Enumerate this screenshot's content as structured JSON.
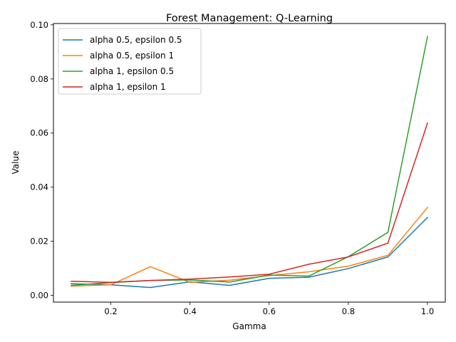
{
  "chart_data": {
    "type": "line",
    "title": "Forest Management: Q-Learning",
    "xlabel": "Gamma",
    "ylabel": "Value",
    "xlim": [
      0.055,
      1.045
    ],
    "ylim": [
      -0.0025,
      0.1005
    ],
    "x_ticks": [
      0.2,
      0.4,
      0.6,
      0.8,
      1.0
    ],
    "x_tick_labels": [
      "0.2",
      "0.4",
      "0.6",
      "0.8",
      "1.0"
    ],
    "y_ticks": [
      0.0,
      0.02,
      0.04,
      0.06,
      0.08,
      0.1
    ],
    "y_tick_labels": [
      "0.00",
      "0.02",
      "0.04",
      "0.06",
      "0.08",
      "0.10"
    ],
    "grid": false,
    "legend_position": "upper-left",
    "x": [
      0.1,
      0.2,
      0.3,
      0.4,
      0.5,
      0.6,
      0.7,
      0.8,
      0.9,
      1.0
    ],
    "series": [
      {
        "name": "alpha 0.5, epsilon 0.5",
        "color": "#1f77b4",
        "values": [
          0.0043,
          0.0039,
          0.0029,
          0.005,
          0.0037,
          0.0063,
          0.0067,
          0.0099,
          0.0142,
          0.0288
        ]
      },
      {
        "name": "alpha 0.5, epsilon 1",
        "color": "#ff7f0e",
        "values": [
          0.0034,
          0.0039,
          0.0106,
          0.0048,
          0.0056,
          0.0073,
          0.0087,
          0.0108,
          0.0148,
          0.0325
        ]
      },
      {
        "name": "alpha 1, epsilon 0.5",
        "color": "#2ca02c",
        "values": [
          0.0037,
          0.0047,
          0.0055,
          0.0057,
          0.0049,
          0.0075,
          0.0071,
          0.0143,
          0.0233,
          0.0957
        ]
      },
      {
        "name": "alpha 1, epsilon 1",
        "color": "#d62728",
        "values": [
          0.0052,
          0.0048,
          0.0055,
          0.006,
          0.0068,
          0.0078,
          0.0115,
          0.0142,
          0.0193,
          0.0637
        ]
      }
    ]
  }
}
